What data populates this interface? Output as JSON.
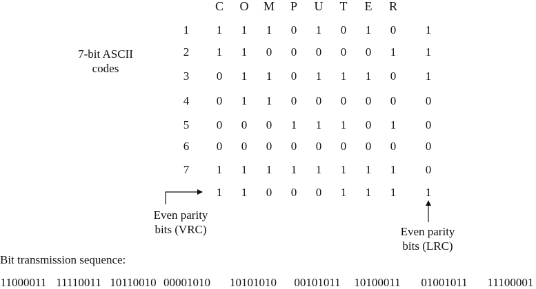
{
  "column_letters": [
    "C",
    "O",
    "M",
    "P",
    "U",
    "T",
    "E",
    "R"
  ],
  "row_numbers": [
    "1",
    "2",
    "3",
    "4",
    "5",
    "6",
    "7"
  ],
  "rows": [
    [
      "1",
      "1",
      "1",
      "0",
      "1",
      "0",
      "1",
      "0",
      "1"
    ],
    [
      "1",
      "1",
      "0",
      "0",
      "0",
      "0",
      "0",
      "1",
      "1"
    ],
    [
      "0",
      "1",
      "1",
      "0",
      "1",
      "1",
      "1",
      "0",
      "1"
    ],
    [
      "0",
      "1",
      "1",
      "0",
      "0",
      "0",
      "0",
      "0",
      "0"
    ],
    [
      "0",
      "0",
      "0",
      "1",
      "1",
      "1",
      "0",
      "1",
      "0"
    ],
    [
      "0",
      "0",
      "0",
      "0",
      "0",
      "0",
      "0",
      "0",
      "0"
    ],
    [
      "1",
      "1",
      "1",
      "1",
      "1",
      "1",
      "1",
      "1",
      "0"
    ],
    [
      "1",
      "1",
      "0",
      "0",
      "0",
      "1",
      "1",
      "1",
      "1"
    ]
  ],
  "ascii_label": [
    "7-bit ASCII",
    "codes"
  ],
  "vrc_label": [
    "Even parity",
    "bits (VRC)"
  ],
  "lrc_label": [
    "Even parity",
    "bits (LRC)"
  ],
  "sequence_title": "Bit transmission sequence:",
  "sequence": [
    "11000011",
    "11110011",
    "10110010",
    "00001010",
    "10101010",
    "00101011",
    "10100011",
    "01001011",
    "11100001"
  ]
}
